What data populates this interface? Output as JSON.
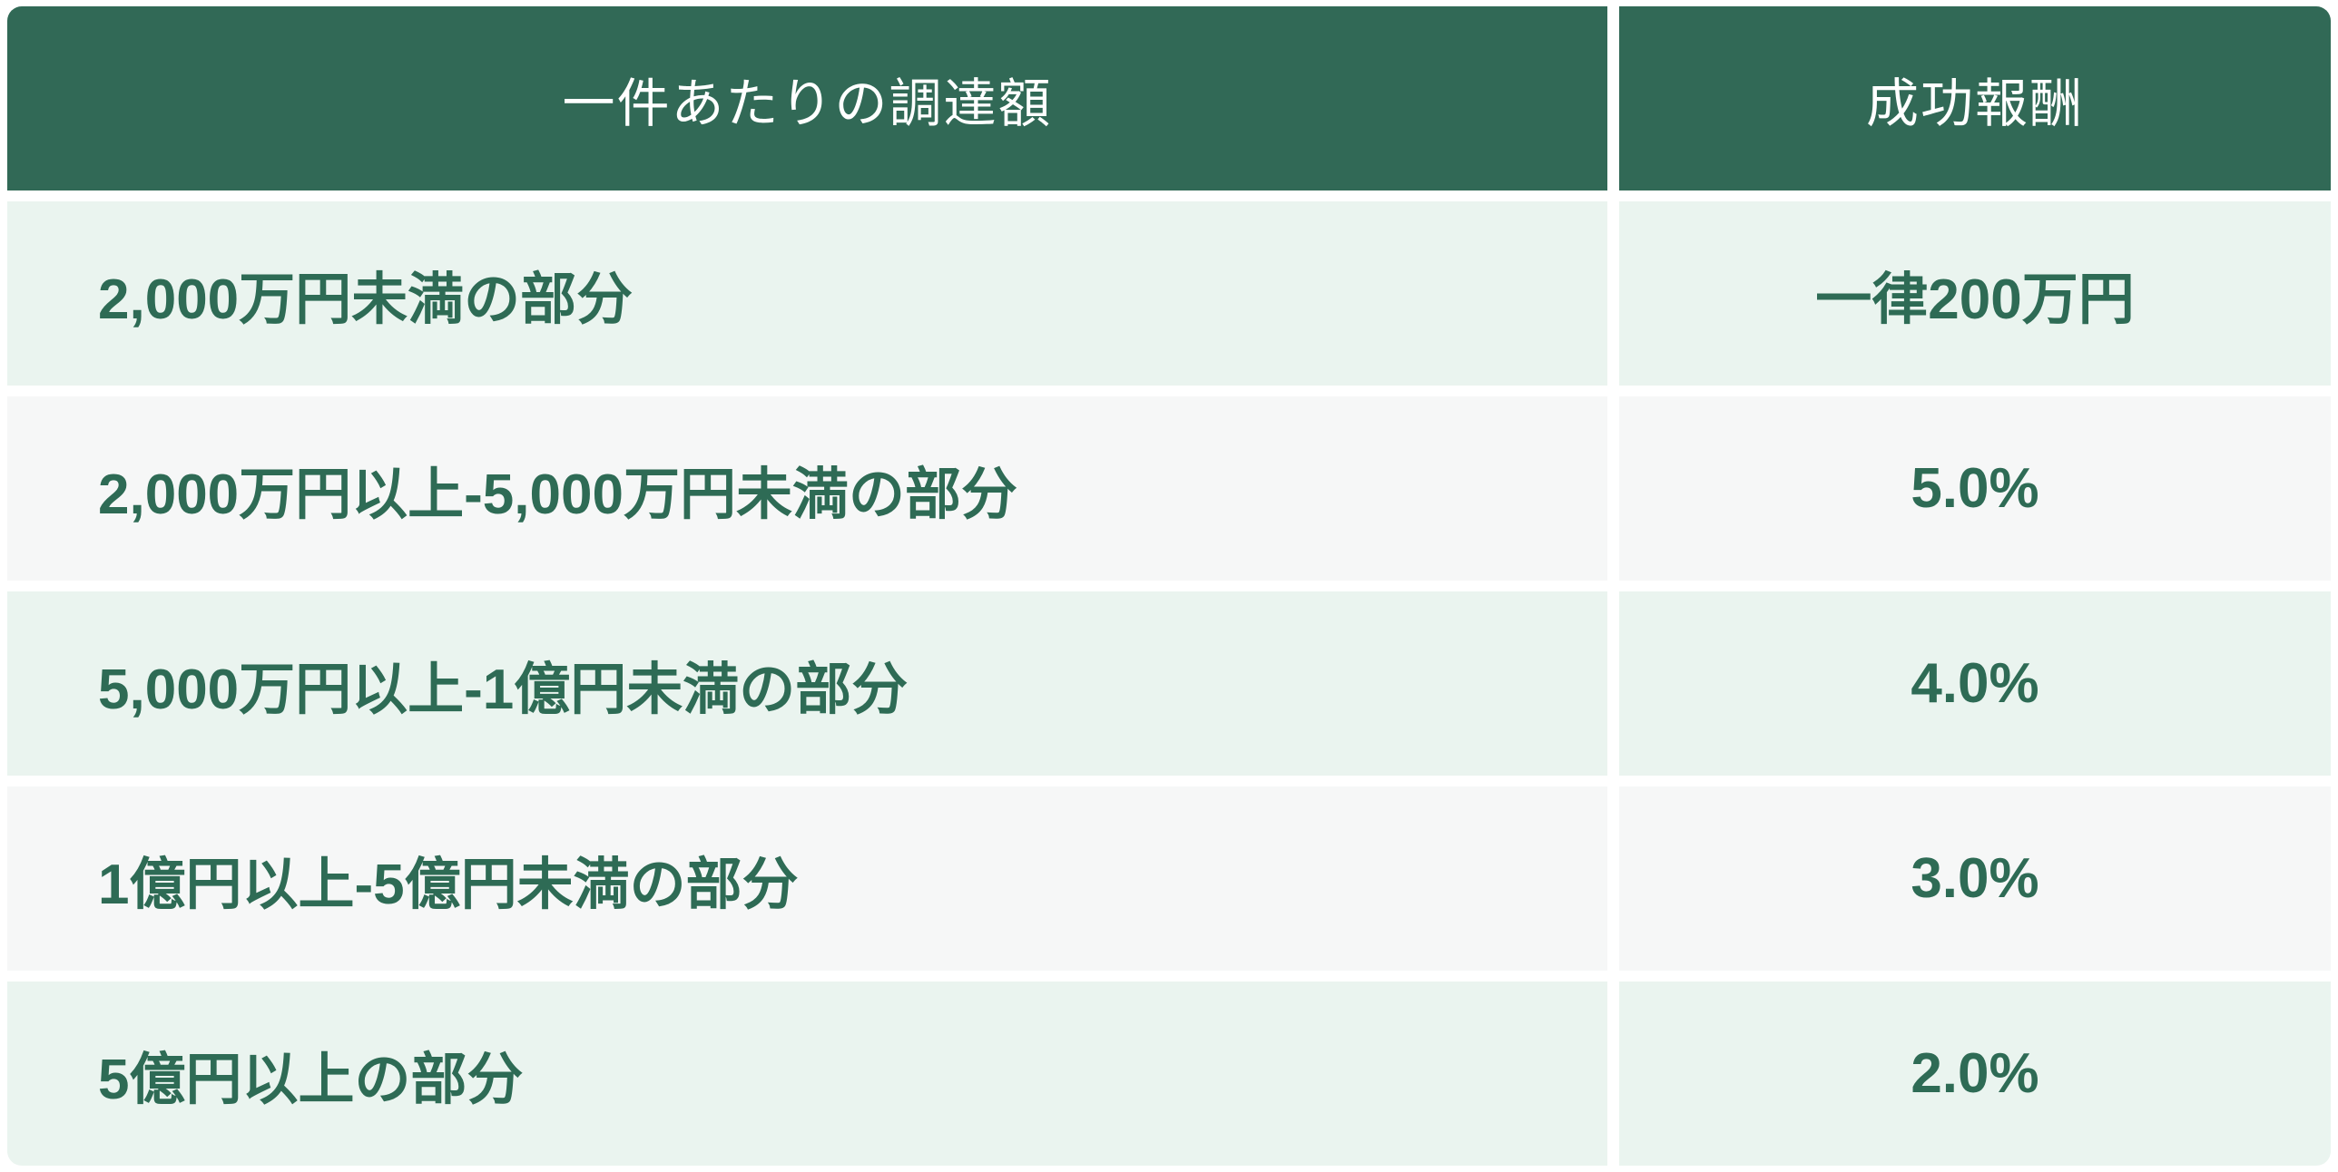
{
  "table": {
    "columns": [
      {
        "label": "一件あたりの調達額"
      },
      {
        "label": "成功報酬"
      }
    ],
    "rows": [
      {
        "range": "2,000万円未満の部分",
        "fee": "一律200万円"
      },
      {
        "range": "2,000万円以上-5,000万円未満の部分",
        "fee": "5.0%"
      },
      {
        "range": "5,000万円以上-1億円未満の部分",
        "fee": "4.0%"
      },
      {
        "range": "1億円以上-5億円未満の部分",
        "fee": "3.0%"
      },
      {
        "range": "5億円以上の部分",
        "fee": "2.0%"
      }
    ],
    "colors": {
      "header_bg": "#316956",
      "header_text": "#ffffff",
      "body_text": "#2e6b55",
      "row_mint": "#eaf4ef",
      "row_gray": "#f6f7f7",
      "gap": "#ffffff"
    }
  }
}
